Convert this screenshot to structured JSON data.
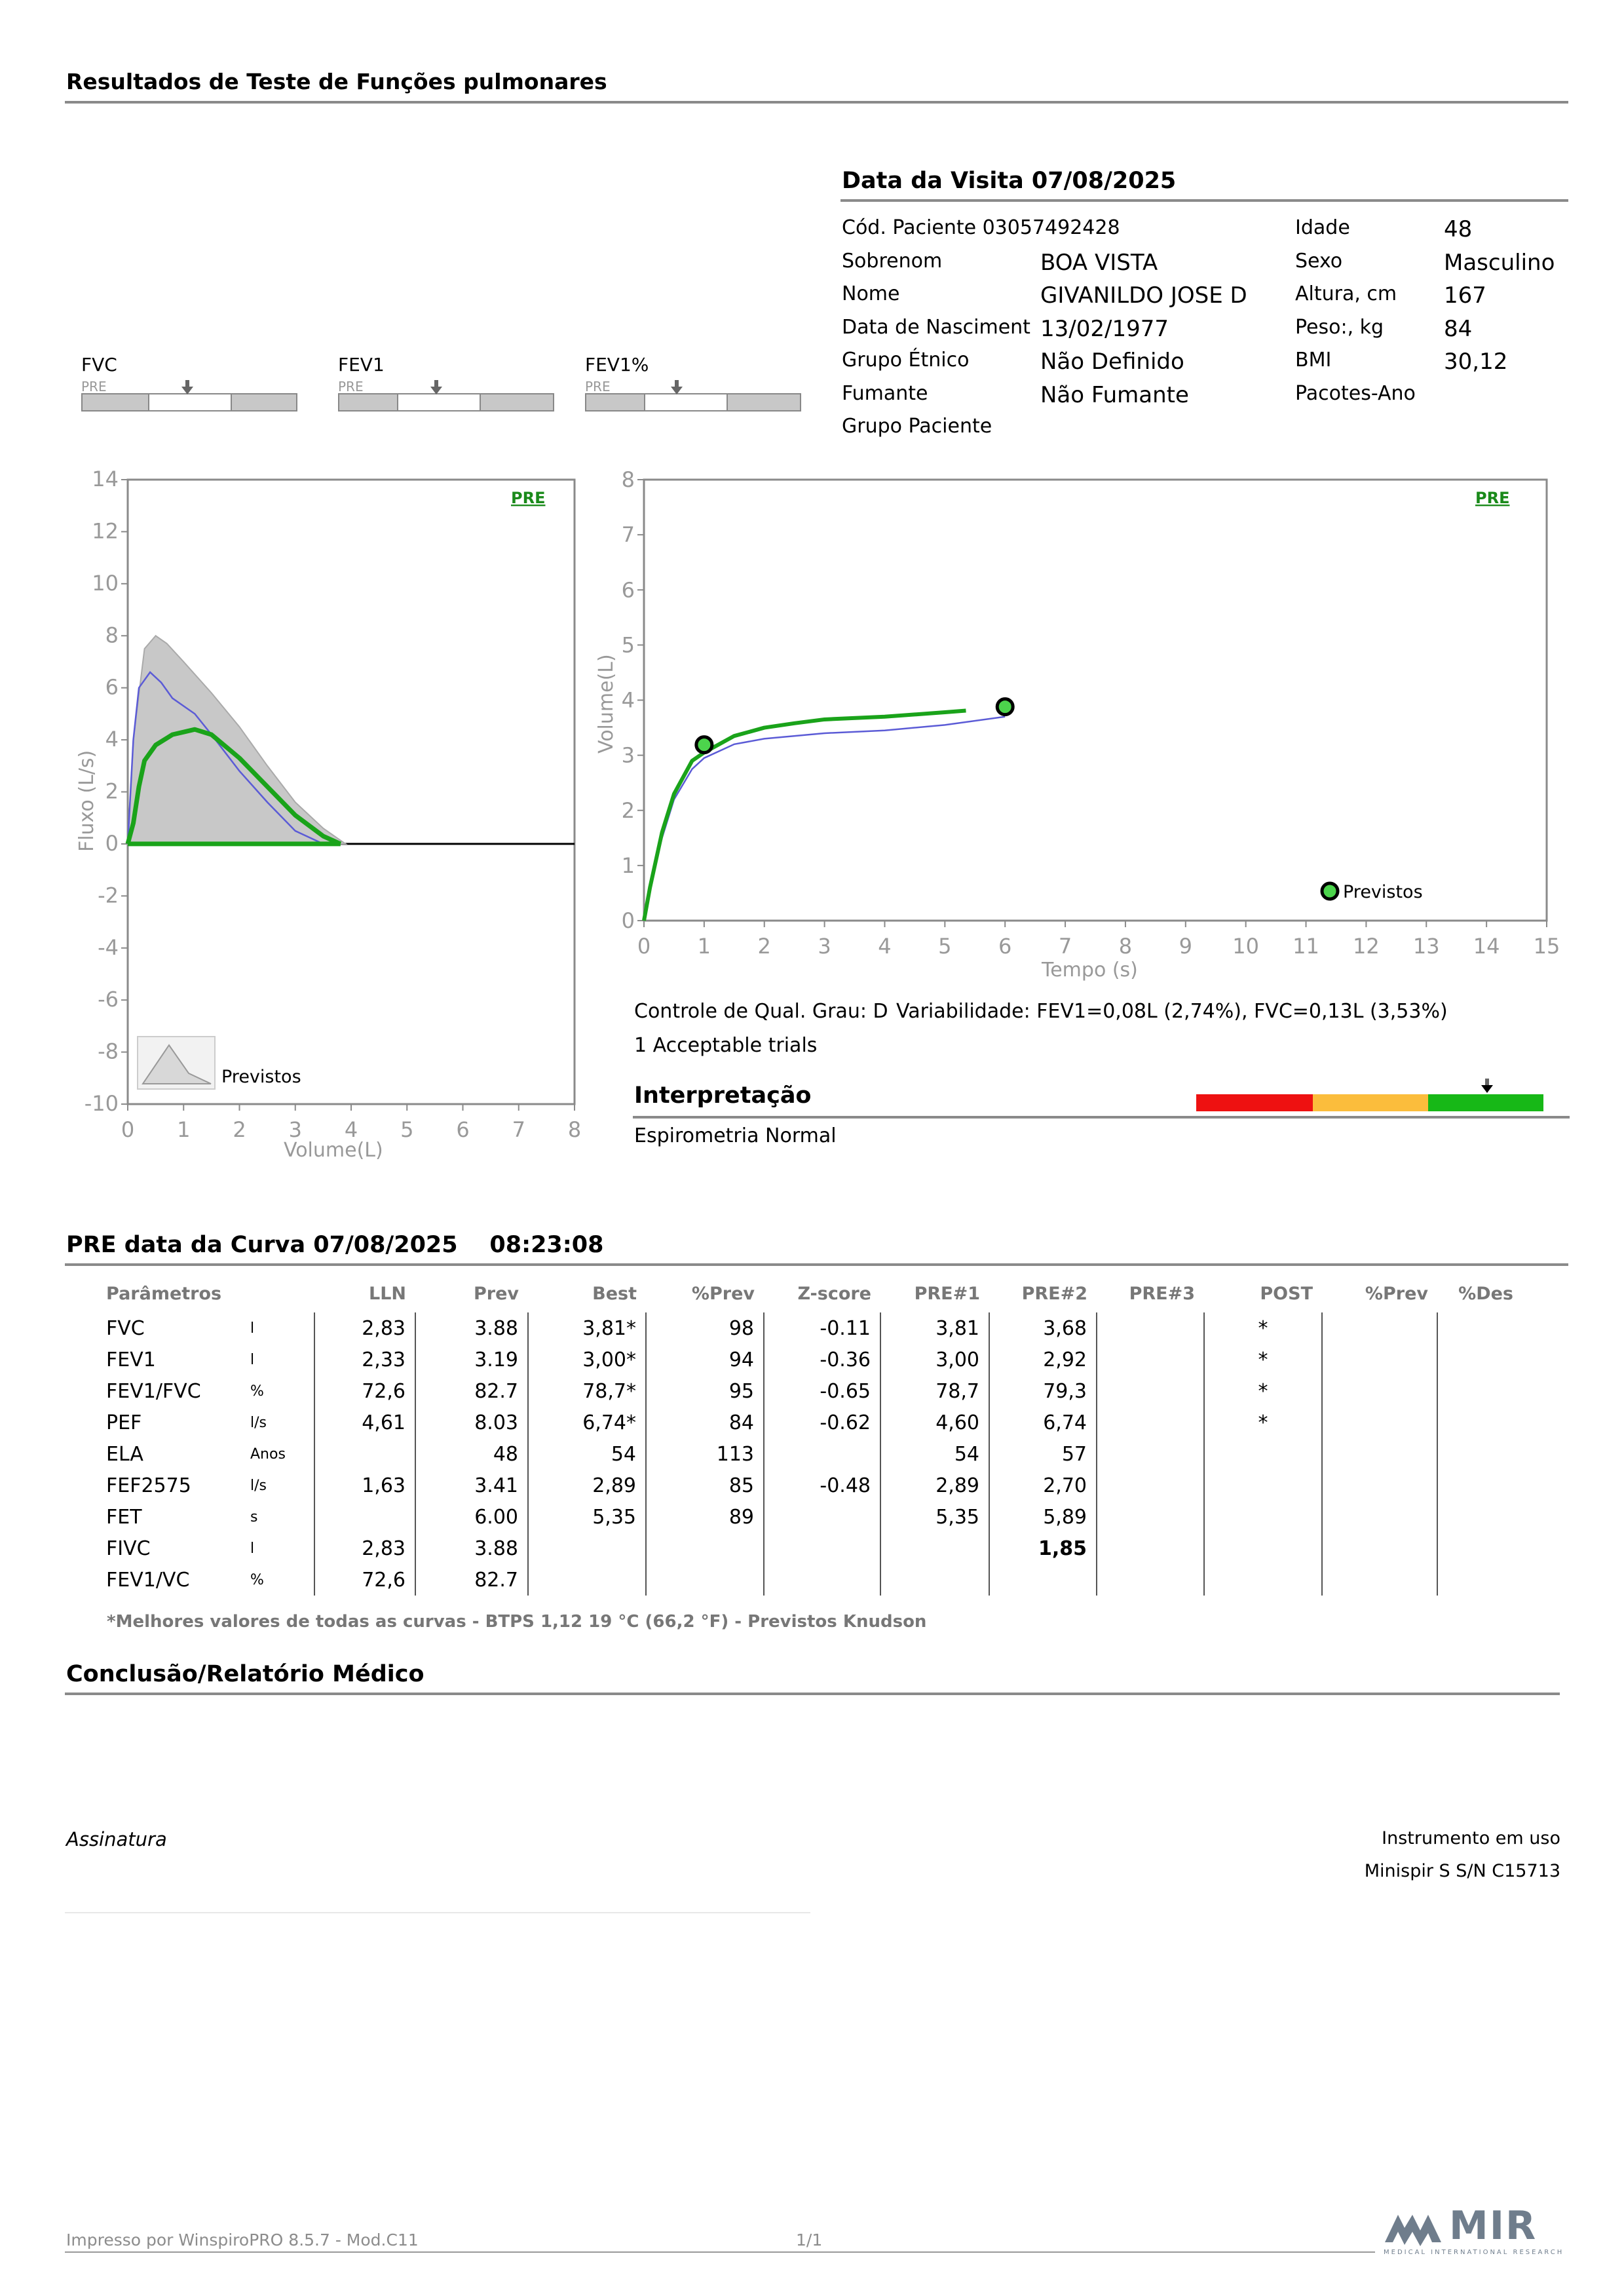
{
  "report": {
    "title": "Resultados de Teste de Funções pulmonares"
  },
  "visit": {
    "title": "Data da Visita 07/08/2025",
    "left_fields": [
      {
        "label": "Cód. Paciente 03057492428",
        "value": ""
      },
      {
        "label": "Sobrenom",
        "value": "BOA VISTA"
      },
      {
        "label": "Nome",
        "value": "GIVANILDO JOSE D"
      },
      {
        "label": "Data de Nasciment",
        "value": "13/02/1977"
      },
      {
        "label": "Grupo Étnico",
        "value": "Não Definido"
      },
      {
        "label": "Fumante",
        "value": "Não Fumante"
      },
      {
        "label": "Grupo Paciente",
        "value": ""
      }
    ],
    "right_fields": [
      {
        "label": "Idade",
        "value": "48"
      },
      {
        "label": "Sexo",
        "value": "Masculino"
      },
      {
        "label": "Altura, cm",
        "value": "167"
      },
      {
        "label": "Peso:, kg",
        "value": "84"
      },
      {
        "label": "BMI",
        "value": "30,12"
      },
      {
        "label": "Pacotes-Ano",
        "value": ""
      }
    ]
  },
  "mini_indicators": [
    {
      "label": "FVC",
      "sub": "PRE"
    },
    {
      "label": "FEV1",
      "sub": "PRE"
    },
    {
      "label": "FEV1%",
      "sub": "PRE"
    }
  ],
  "flow_volume_chart": {
    "tag": "PRE",
    "legend_label": "Previstos",
    "xlabel": "Volume(L)",
    "ylabel": "Fluxo (L/s)",
    "x_ticks": [
      "0",
      "1",
      "2",
      "3",
      "4",
      "5",
      "6",
      "7",
      "8"
    ],
    "y_ticks": [
      "14",
      "12",
      "10",
      "8",
      "6",
      "4",
      "2",
      "0",
      "-2",
      "-4",
      "-6",
      "-8",
      "-10"
    ]
  },
  "volume_time_chart": {
    "tag": "PRE",
    "legend_label": "Previstos",
    "xlabel": "Tempo (s)",
    "ylabel": "Volume(L)",
    "x_ticks": [
      "0",
      "1",
      "2",
      "3",
      "4",
      "5",
      "6",
      "7",
      "8",
      "9",
      "10",
      "11",
      "12",
      "13",
      "14",
      "15"
    ],
    "y_ticks": [
      "8",
      "7",
      "6",
      "5",
      "4",
      "3",
      "2",
      "1",
      "0"
    ]
  },
  "chart_data": [
    {
      "type": "line",
      "title": "",
      "xlabel": "Volume(L)",
      "ylabel": "Fluxo (L/s)",
      "xlim": [
        0,
        8
      ],
      "ylim": [
        -10,
        14
      ],
      "series": [
        {
          "name": "Previstos",
          "x": [
            0,
            0.1,
            0.3,
            0.5,
            0.7,
            1.0,
            1.5,
            2.0,
            2.5,
            3.0,
            3.5,
            3.9
          ],
          "y": [
            0,
            4.0,
            7.5,
            8.0,
            7.7,
            7.0,
            5.8,
            4.5,
            3.0,
            1.6,
            0.6,
            0
          ]
        },
        {
          "name": "",
          "x": [
            0,
            0.1,
            0.2,
            0.4,
            0.6,
            0.8,
            1.0,
            1.2,
            1.5,
            2.0,
            2.5,
            3.0,
            3.5
          ],
          "y": [
            0,
            4.0,
            6.0,
            6.6,
            6.2,
            5.6,
            5.3,
            5.0,
            4.2,
            2.8,
            1.6,
            0.5,
            0
          ]
        },
        {
          "name": "",
          "x": [
            0,
            0.1,
            0.2,
            0.3,
            0.5,
            0.8,
            1.0,
            1.2,
            1.5,
            2.0,
            2.5,
            3.0,
            3.5,
            3.81
          ],
          "y": [
            0,
            0.8,
            2.2,
            3.2,
            3.8,
            4.2,
            4.3,
            4.4,
            4.2,
            3.3,
            2.2,
            1.1,
            0.3,
            0
          ]
        }
      ]
    },
    {
      "type": "line",
      "title": "",
      "xlabel": "Tempo (s)",
      "ylabel": "Volume(L)",
      "xlim": [
        0,
        15
      ],
      "ylim": [
        0,
        8
      ],
      "series": [
        {
          "name": "",
          "x": [
            0,
            0.1,
            0.3,
            0.5,
            0.8,
            1.0,
            1.5,
            2.0,
            3.0,
            4.0,
            5.0,
            6.0
          ],
          "y": [
            0,
            0.6,
            1.5,
            2.2,
            2.75,
            2.95,
            3.2,
            3.3,
            3.4,
            3.45,
            3.55,
            3.7
          ]
        },
        {
          "name": "",
          "x": [
            0,
            0.1,
            0.3,
            0.5,
            0.8,
            1.0,
            1.5,
            2.0,
            2.5,
            3.0,
            4.0,
            5.0,
            5.35
          ],
          "y": [
            0,
            0.6,
            1.6,
            2.3,
            2.9,
            3.05,
            3.35,
            3.5,
            3.58,
            3.65,
            3.7,
            3.78,
            3.81
          ]
        }
      ],
      "markers": [
        {
          "x": 1,
          "y": 3.19
        },
        {
          "x": 6,
          "y": 3.88
        }
      ]
    }
  ],
  "quality": {
    "grade": "Controle de Qual. Grau: D",
    "variability": "Variabilidade: FEV1=0,08L (2,74%), FVC=0,13L (3,53%)",
    "trials": "1 Acceptable trials"
  },
  "interpretation": {
    "title": "Interpretação",
    "text": "Espirometria Normal",
    "colors": [
      "#ee1111",
      "#fbbd3c",
      "#17b817"
    ],
    "indicator_position": 0.5
  },
  "curve": {
    "title": "PRE data da Curva 07/08/2025    08:23:08"
  },
  "results_table": {
    "headers": [
      "Parâmetros",
      "",
      "LLN",
      "Prev",
      "Best",
      "%Prev",
      "Z-score",
      "PRE#1",
      "PRE#2",
      "PRE#3",
      "POST",
      "%Prev",
      "%Des"
    ],
    "rows": [
      [
        "FVC",
        "l",
        "2,83",
        "3.88",
        "3,81*",
        "98",
        "-0.11",
        "3,81",
        "3,68",
        "",
        "*",
        "",
        ""
      ],
      [
        "FEV1",
        "l",
        "2,33",
        "3.19",
        "3,00*",
        "94",
        "-0.36",
        "3,00",
        "2,92",
        "",
        "*",
        "",
        ""
      ],
      [
        "FEV1/FVC",
        "%",
        "72,6",
        "82.7",
        "78,7*",
        "95",
        "-0.65",
        "78,7",
        "79,3",
        "",
        "*",
        "",
        ""
      ],
      [
        "PEF",
        "l/s",
        "4,61",
        "8.03",
        "6,74*",
        "84",
        "-0.62",
        "4,60",
        "6,74",
        "",
        "*",
        "",
        ""
      ],
      [
        "ELA",
        "Anos",
        "",
        "48",
        "54",
        "113",
        "",
        "54",
        "57",
        "",
        "",
        "",
        ""
      ],
      [
        "FEF2575",
        "l/s",
        "1,63",
        "3.41",
        "2,89",
        "85",
        "-0.48",
        "2,89",
        "2,70",
        "",
        "",
        "",
        ""
      ],
      [
        "FET",
        "s",
        "",
        "6.00",
        "5,35",
        "89",
        "",
        "5,35",
        "5,89",
        "",
        "",
        "",
        ""
      ],
      [
        "FIVC",
        "l",
        "2,83",
        "3.88",
        "",
        "",
        "",
        "",
        "1,85",
        "",
        "",
        "",
        ""
      ],
      [
        "FEV1/VC",
        "%",
        "72,6",
        "82.7",
        "",
        "",
        "",
        "",
        "",
        "",
        "",
        "",
        ""
      ]
    ],
    "note": "*Melhores valores de todas as curvas - BTPS  1,12  19 °C  (66,2 °F) - Previstos Knudson"
  },
  "conclusion": {
    "title": "Conclusão/Relatório Médico"
  },
  "signature": {
    "label": "Assinatura"
  },
  "instrument": {
    "label": "Instrumento em uso",
    "value": "Minispir S S/N C15713"
  },
  "footer": {
    "printed_by": "Impresso por WinspiroPRO  8.5.7 - Mod.C11",
    "page": "1/1",
    "logo_text": "MIR",
    "logo_sub": "MEDICAL INTERNATIONAL RESEARCH"
  }
}
